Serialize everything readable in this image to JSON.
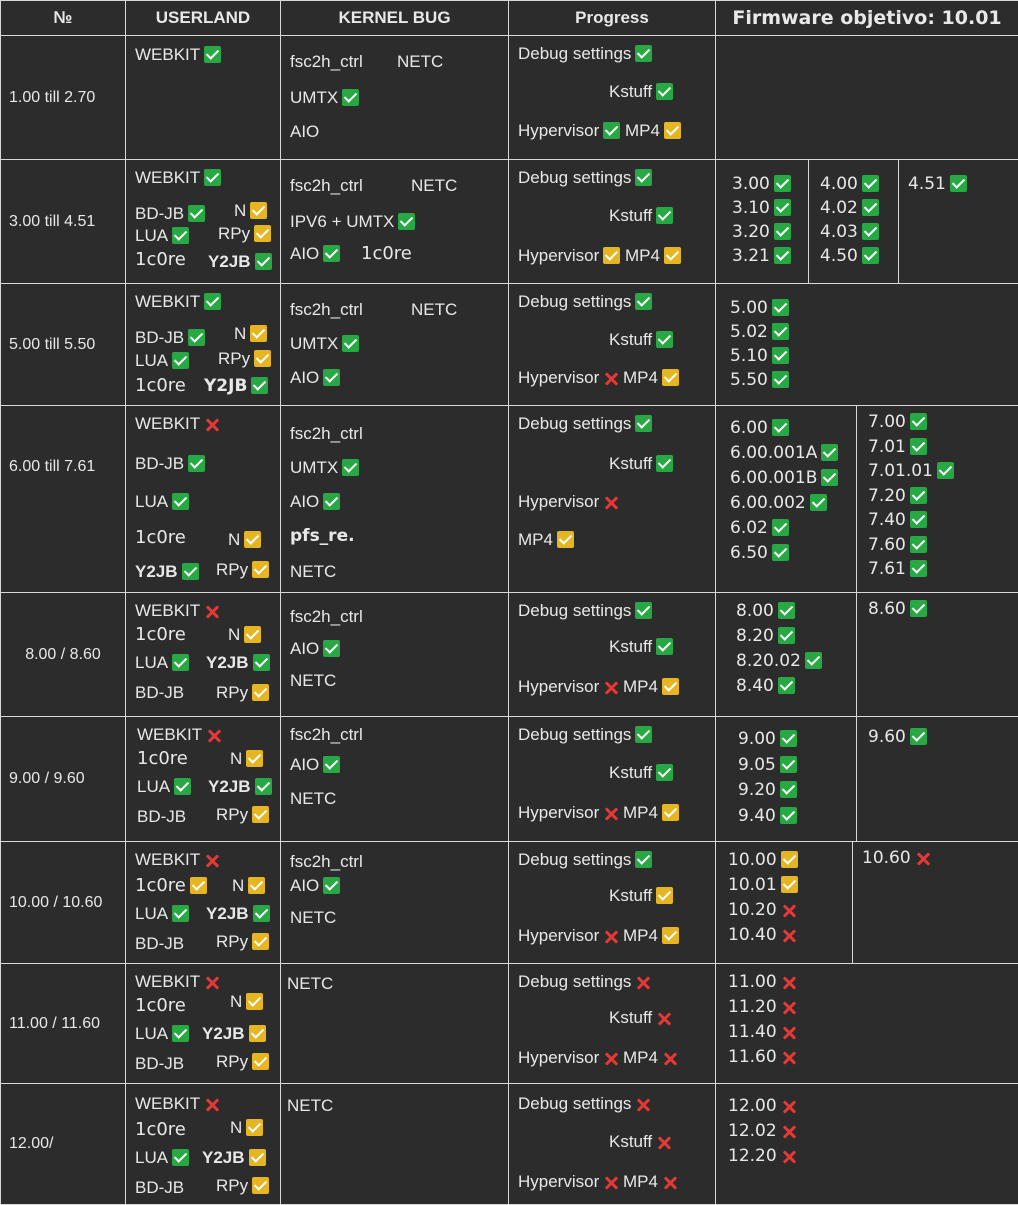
{
  "header": {
    "num": "№",
    "userland": "USERLAND",
    "kernel": "KERNEL BUG",
    "progress": "Progress",
    "firmware": "Firmware objetivo: 10.01"
  },
  "labels": {
    "webkit": "WEBKIT",
    "bdjb": "BD-JB",
    "lua": "LUA",
    "n": "N",
    "rpy": "RPy",
    "c0re": "1c0re",
    "y2jb": "Y2JB",
    "fsc2h": "fsc2h_ctrl",
    "netc": "NETC",
    "umtx": "UMTX",
    "aio": "AIO",
    "ipv6": "IPV6 + UMTX",
    "pfs": "pfs_re.",
    "debug": "Debug settings",
    "kstuff": "Kstuff",
    "hyper": "Hypervisor",
    "mp4": "MP4"
  },
  "legend": {
    "ok": "check-done",
    "wip": "check-partial",
    "no": "cross-not-done",
    "colors": {
      "ok": "#27a844",
      "wip": "#e6b523",
      "no": "#e53935"
    }
  },
  "rows": [
    {
      "range": "1.00 till 2.70"
    },
    {
      "range": "3.00 till 4.51",
      "fw": [
        [
          "3.00",
          "3.10",
          "3.20",
          "3.21"
        ],
        [
          "4.00",
          "4.02",
          "4.03",
          "4.50"
        ],
        [
          "4.51"
        ]
      ]
    },
    {
      "range": "5.00 till 5.50",
      "fw": [
        [
          "5.00",
          "5.02",
          "5.10",
          "5.50"
        ]
      ]
    },
    {
      "range": "6.00 till 7.61",
      "fw": [
        [
          "6.00",
          "6.00.001A",
          "6.00.001B",
          "6.00.002",
          "6.02",
          "6.50"
        ],
        [
          "7.00",
          "7.01",
          "7.01.01",
          "7.20",
          "7.40",
          "7.60",
          "7.61"
        ]
      ]
    },
    {
      "range": "8.00 / 8.60",
      "fw": [
        [
          "8.00",
          "8.20",
          "8.20.02",
          "8.40"
        ],
        [
          "8.60"
        ]
      ]
    },
    {
      "range": "9.00 / 9.60",
      "fw": [
        [
          "9.00",
          "9.05",
          "9.20",
          "9.40"
        ],
        [
          "9.60"
        ]
      ]
    },
    {
      "range": "10.00 / 10.60",
      "fw": [
        [
          "10.00",
          "10.01",
          "10.20",
          "10.40"
        ],
        [
          "10.60"
        ]
      ]
    },
    {
      "range": "11.00 / 11.60",
      "fw": [
        [
          "11.00",
          "11.20",
          "11.40",
          "11.60"
        ]
      ]
    },
    {
      "range": "12.00/",
      "fw": [
        [
          "12.00",
          "12.02",
          "12.20"
        ]
      ]
    }
  ]
}
